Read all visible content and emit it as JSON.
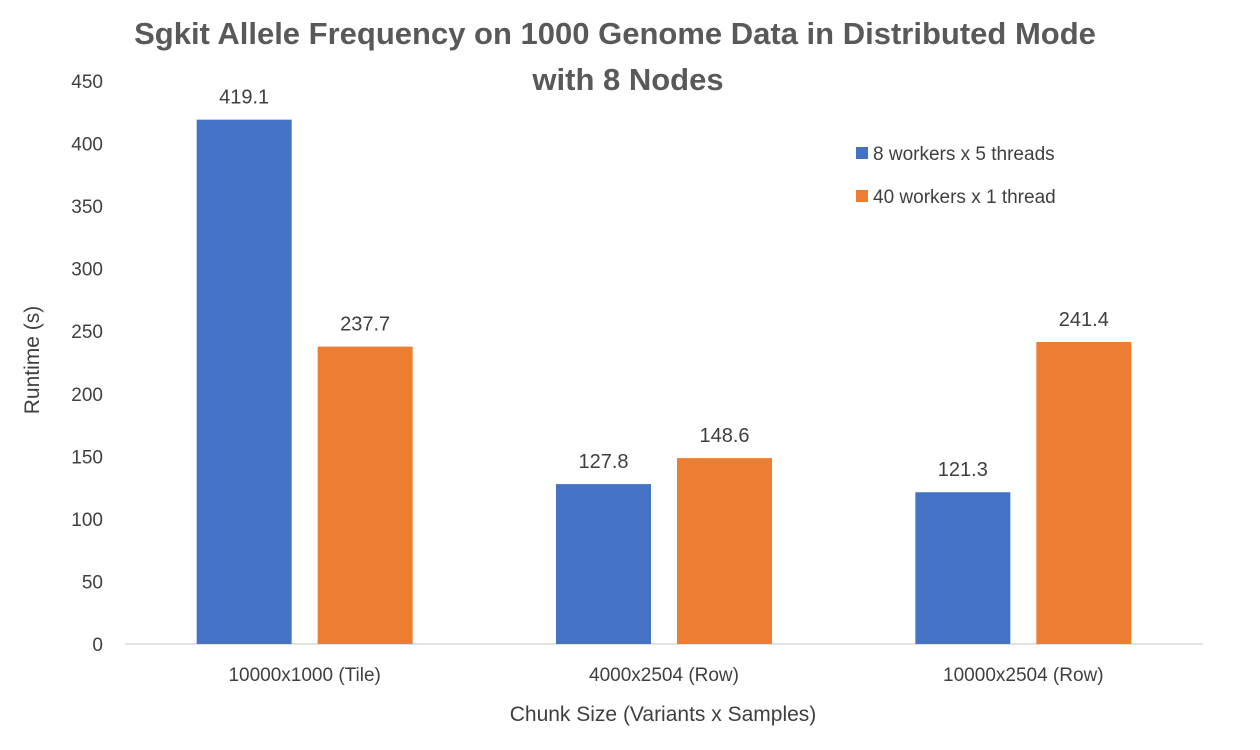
{
  "chart_data": {
    "type": "bar",
    "title": "Sgkit Allele Frequency on 1000 Genome Data in Distributed Mode with 8 Nodes",
    "title_lines": [
      "Sgkit Allele Frequency on 1000 Genome Data in Distributed Mode",
      "with 8 Nodes"
    ],
    "xlabel": "Chunk Size (Variants x Samples)",
    "ylabel": "Runtime (s)",
    "ylim": [
      0,
      450
    ],
    "yticks": [
      0,
      50,
      100,
      150,
      200,
      250,
      300,
      350,
      400,
      450
    ],
    "grid": false,
    "legend_position": "top-right",
    "categories": [
      "10000x1000 (Tile)",
      "4000x2504 (Row)",
      "10000x2504 (Row)"
    ],
    "series": [
      {
        "name": "8 workers x 5 threads",
        "color": "#4472C4",
        "values": [
          419.1,
          127.8,
          121.3
        ],
        "labels": [
          "419.1",
          "127.8",
          "121.3"
        ]
      },
      {
        "name": "40 workers x 1 thread",
        "color": "#ED7D31",
        "values": [
          237.7,
          148.6,
          241.4
        ],
        "labels": [
          "237.7",
          "148.6",
          "241.4"
        ]
      }
    ]
  }
}
